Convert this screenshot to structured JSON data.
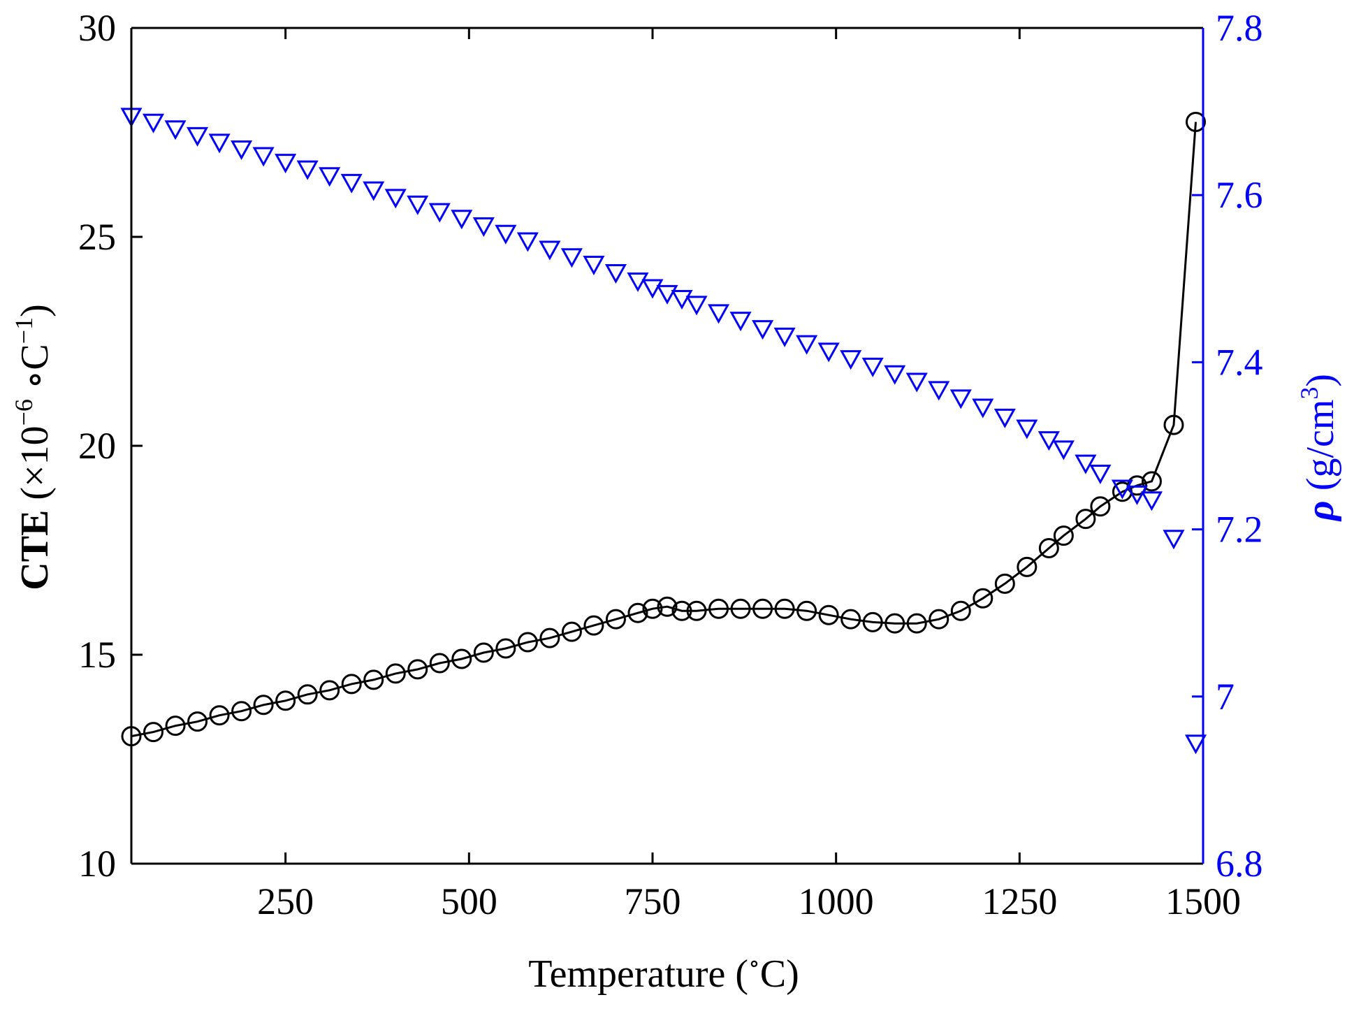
{
  "chart_data": {
    "type": "line",
    "xlabel": "Temperature",
    "xlabel_unit_pre": "(",
    "xlabel_degree": "∘",
    "xlabel_unit_post": "C)",
    "ylabel_left": {
      "main": "CTE",
      "paren_open": " (×10",
      "exp1": "−6",
      "mid": " ∘C",
      "exp2": "−1",
      "paren_close": ")"
    },
    "ylabel_right": {
      "rho": "ρ",
      "unit": " (g/cm",
      "exp": "3",
      "close": ")"
    },
    "xlim": [
      40,
      1500
    ],
    "ylim_left": [
      10,
      30
    ],
    "ylim_right": [
      6.8,
      7.8
    ],
    "xticks": [
      250,
      500,
      750,
      1000,
      1250,
      1500
    ],
    "xtick_labels": [
      "250",
      "500",
      "750",
      "1000",
      "1250",
      "1500"
    ],
    "yticks_left": [
      10,
      15,
      20,
      25,
      30
    ],
    "ytick_labels_left": [
      "10",
      "15",
      "20",
      "25",
      "30"
    ],
    "yticks_right": [
      6.8,
      7.0,
      7.2,
      7.4,
      7.6,
      7.8
    ],
    "ytick_labels_right": [
      "6.8",
      "7",
      "7.2",
      "7.4",
      "7.6",
      "7.8"
    ],
    "colors": {
      "left_axis": "#000000",
      "right_axis": "#0000ff",
      "cte_series": "#000000",
      "rho_series": "#0000ff"
    },
    "series": [
      {
        "name": "CTE",
        "axis": "left",
        "marker": "circle",
        "line": true,
        "x": [
          40,
          70,
          100,
          130,
          160,
          190,
          220,
          250,
          280,
          310,
          340,
          370,
          400,
          430,
          460,
          490,
          520,
          550,
          580,
          610,
          640,
          670,
          700,
          730,
          750,
          770,
          790,
          810,
          840,
          870,
          900,
          930,
          960,
          990,
          1020,
          1050,
          1080,
          1110,
          1140,
          1170,
          1200,
          1230,
          1260,
          1290,
          1310,
          1340,
          1360,
          1390,
          1410,
          1430,
          1460,
          1490
        ],
        "values": [
          13.05,
          13.15,
          13.3,
          13.4,
          13.55,
          13.65,
          13.8,
          13.9,
          14.05,
          14.15,
          14.3,
          14.4,
          14.55,
          14.65,
          14.8,
          14.9,
          15.05,
          15.15,
          15.3,
          15.4,
          15.55,
          15.7,
          15.85,
          16.0,
          16.1,
          16.15,
          16.05,
          16.05,
          16.1,
          16.1,
          16.1,
          16.1,
          16.05,
          15.95,
          15.85,
          15.78,
          15.75,
          15.75,
          15.85,
          16.05,
          16.35,
          16.7,
          17.1,
          17.55,
          17.85,
          18.25,
          18.55,
          18.9,
          19.05,
          19.15,
          20.5,
          27.75
        ]
      },
      {
        "name": "rho",
        "axis": "right",
        "marker": "triangle-down",
        "line": false,
        "x": [
          40,
          70,
          100,
          130,
          160,
          190,
          220,
          250,
          280,
          310,
          340,
          370,
          400,
          430,
          460,
          490,
          520,
          550,
          580,
          610,
          640,
          670,
          700,
          730,
          750,
          770,
          790,
          810,
          840,
          870,
          900,
          930,
          960,
          990,
          1020,
          1050,
          1080,
          1110,
          1140,
          1170,
          1200,
          1230,
          1260,
          1290,
          1310,
          1340,
          1360,
          1390,
          1410,
          1430,
          1460,
          1490
        ],
        "values": [
          7.695,
          7.688,
          7.68,
          7.672,
          7.664,
          7.656,
          7.648,
          7.64,
          7.632,
          7.624,
          7.616,
          7.607,
          7.598,
          7.59,
          7.581,
          7.573,
          7.564,
          7.555,
          7.546,
          7.536,
          7.527,
          7.518,
          7.508,
          7.498,
          7.49,
          7.483,
          7.477,
          7.47,
          7.46,
          7.451,
          7.441,
          7.432,
          7.423,
          7.414,
          7.405,
          7.396,
          7.387,
          7.378,
          7.368,
          7.358,
          7.347,
          7.335,
          7.322,
          7.308,
          7.297,
          7.28,
          7.268,
          7.25,
          7.243,
          7.236,
          7.19,
          6.945
        ]
      }
    ]
  }
}
